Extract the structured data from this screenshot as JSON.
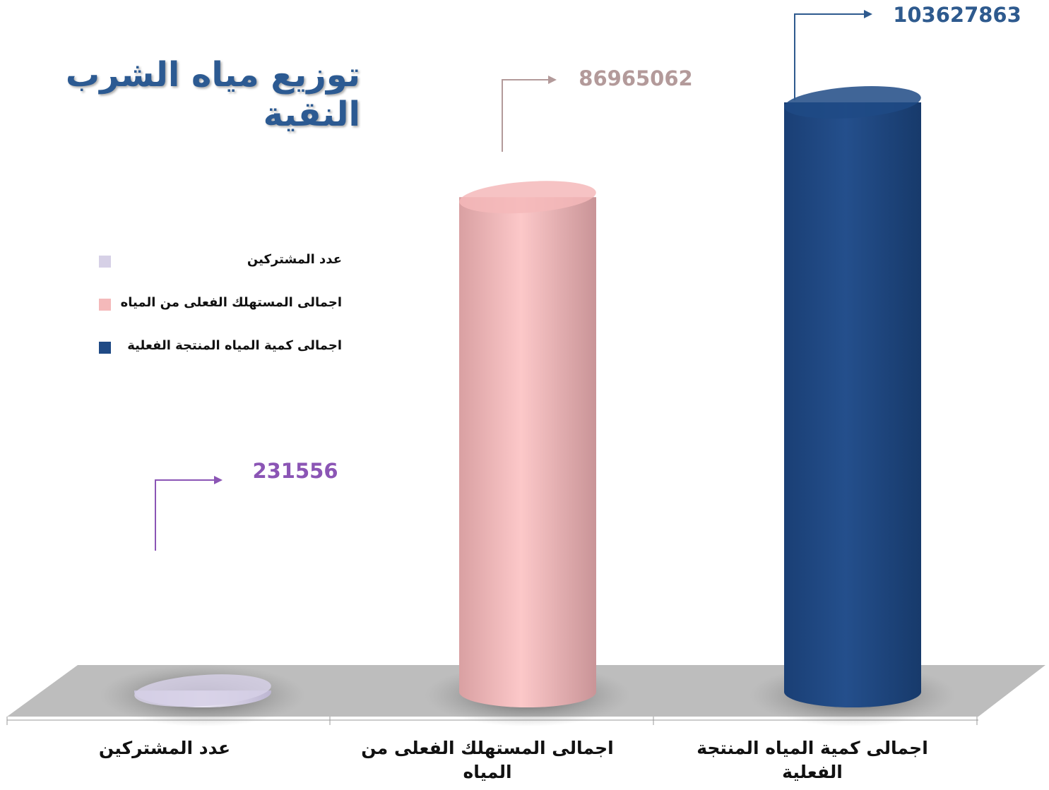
{
  "chart_data": {
    "type": "bar",
    "title": "توزيع مياه الشرب النقية",
    "categories": [
      "عدد المشتركين",
      "اجمالى المستهلك الفعلى من المياه",
      "اجمالى كمية المياه المنتجة الفعلية"
    ],
    "values": [
      231556,
      86965062,
      103627863
    ],
    "colors": [
      "#d6d0e6",
      "#f4b9ba",
      "#1f4a85"
    ],
    "label_colors": [
      "#8b55b5",
      "#b39a9a",
      "#2e5a8e"
    ]
  }
}
